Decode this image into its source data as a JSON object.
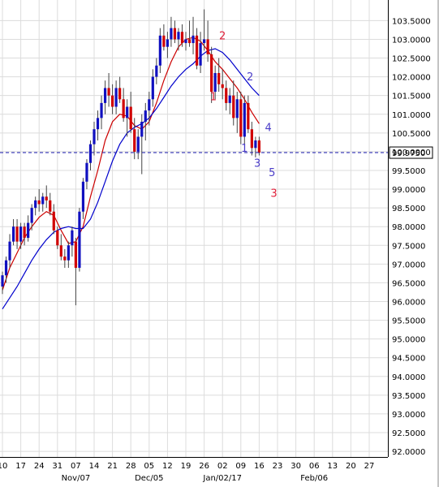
{
  "chart_data": {
    "type": "candlestick",
    "ylim": [
      91.85,
      104.05
    ],
    "y_ticks": [
      "92.0000",
      "92.5000",
      "93.0000",
      "93.5000",
      "94.0000",
      "94.5000",
      "95.0000",
      "95.5000",
      "96.0000",
      "96.5000",
      "97.0000",
      "97.5000",
      "98.0000",
      "98.5000",
      "99.0000",
      "99.5000",
      "100.0000",
      "100.5000",
      "101.0000",
      "101.5000",
      "102.0000",
      "102.5000",
      "103.0000",
      "103.5000"
    ],
    "x_ticks": [
      "10",
      "17",
      "24",
      "31",
      "07",
      "14",
      "21",
      "28",
      "05",
      "12",
      "19",
      "26",
      "02",
      "09",
      "16",
      "23",
      "30",
      "06",
      "13",
      "20",
      "27"
    ],
    "month_labels": [
      {
        "text": "Nov/07",
        "at": "07"
      },
      {
        "text": "Dec/05",
        "at": "05"
      },
      {
        "text": "Jan/02/17",
        "at": "02"
      },
      {
        "text": "Feb/06",
        "at": "06"
      }
    ],
    "current_price": {
      "value": 99.975,
      "label": "99.9750"
    },
    "candles": [
      [
        96.4,
        96.8,
        96.2,
        96.7
      ],
      [
        96.7,
        97.2,
        96.5,
        97.1
      ],
      [
        97.1,
        97.8,
        96.9,
        97.6
      ],
      [
        97.6,
        98.2,
        97.5,
        98.0
      ],
      [
        98.0,
        98.2,
        97.4,
        97.6
      ],
      [
        97.6,
        98.1,
        97.4,
        98.0
      ],
      [
        98.0,
        98.1,
        97.5,
        97.7
      ],
      [
        97.7,
        98.3,
        97.6,
        98.1
      ],
      [
        98.1,
        98.6,
        97.9,
        98.5
      ],
      [
        98.5,
        98.8,
        98.3,
        98.7
      ],
      [
        98.7,
        99.0,
        98.4,
        98.6
      ],
      [
        98.6,
        98.9,
        98.4,
        98.8
      ],
      [
        98.8,
        99.1,
        98.5,
        98.7
      ],
      [
        98.7,
        98.9,
        98.3,
        98.4
      ],
      [
        98.4,
        98.6,
        97.8,
        97.9
      ],
      [
        97.9,
        98.0,
        97.4,
        97.5
      ],
      [
        97.5,
        97.8,
        97.1,
        97.2
      ],
      [
        97.2,
        97.4,
        96.9,
        97.1
      ],
      [
        97.1,
        97.6,
        96.9,
        97.5
      ],
      [
        97.5,
        98.0,
        97.2,
        97.9
      ],
      [
        97.6,
        97.7,
        95.9,
        96.9
      ],
      [
        96.9,
        98.5,
        96.8,
        98.4
      ],
      [
        98.4,
        99.3,
        98.2,
        99.2
      ],
      [
        99.2,
        99.8,
        99.0,
        99.7
      ],
      [
        99.7,
        100.3,
        99.5,
        100.2
      ],
      [
        100.2,
        100.8,
        99.9,
        100.6
      ],
      [
        100.6,
        101.1,
        100.3,
        100.9
      ],
      [
        100.9,
        101.5,
        100.6,
        101.3
      ],
      [
        101.3,
        101.9,
        101.0,
        101.7
      ],
      [
        101.7,
        102.1,
        101.2,
        101.5
      ],
      [
        101.5,
        101.8,
        101.0,
        101.2
      ],
      [
        101.2,
        101.9,
        101.0,
        101.7
      ],
      [
        101.7,
        102.0,
        101.3,
        101.4
      ],
      [
        101.4,
        101.7,
        100.8,
        100.9
      ],
      [
        100.9,
        101.4,
        100.4,
        101.2
      ],
      [
        101.2,
        101.6,
        100.5,
        100.6
      ],
      [
        100.6,
        100.9,
        99.8,
        100.0
      ],
      [
        100.0,
        100.6,
        99.8,
        100.4
      ],
      [
        100.4,
        101.0,
        99.4,
        100.8
      ],
      [
        100.8,
        101.3,
        100.3,
        101.1
      ],
      [
        101.1,
        101.6,
        100.7,
        101.4
      ],
      [
        101.4,
        102.2,
        101.2,
        102.0
      ],
      [
        102.0,
        102.5,
        101.8,
        102.3
      ],
      [
        102.3,
        103.3,
        102.1,
        103.1
      ],
      [
        103.1,
        103.4,
        102.7,
        102.8
      ],
      [
        102.8,
        103.2,
        102.5,
        103.0
      ],
      [
        103.0,
        103.6,
        102.8,
        103.3
      ],
      [
        103.3,
        103.5,
        102.9,
        103.0
      ],
      [
        103.0,
        103.3,
        102.7,
        103.2
      ],
      [
        103.2,
        103.4,
        102.8,
        102.9
      ],
      [
        102.9,
        103.2,
        102.7,
        103.0
      ],
      [
        103.0,
        103.5,
        102.8,
        102.9
      ],
      [
        102.9,
        103.6,
        102.6,
        103.1
      ],
      [
        103.1,
        103.3,
        102.2,
        102.3
      ],
      [
        102.3,
        103.2,
        102.1,
        102.9
      ],
      [
        102.9,
        103.8,
        102.7,
        103.0
      ],
      [
        103.0,
        103.5,
        102.4,
        102.6
      ],
      [
        102.6,
        102.8,
        101.3,
        101.6
      ],
      [
        101.6,
        102.3,
        101.4,
        102.1
      ],
      [
        102.1,
        102.5,
        101.6,
        101.8
      ],
      [
        101.8,
        102.2,
        101.4,
        101.7
      ],
      [
        101.7,
        101.9,
        101.1,
        101.3
      ],
      [
        101.3,
        101.7,
        101.0,
        101.5
      ],
      [
        101.5,
        101.9,
        100.7,
        100.9
      ],
      [
        100.9,
        101.6,
        100.5,
        101.4
      ],
      [
        101.4,
        101.6,
        100.2,
        100.4
      ],
      [
        100.4,
        101.5,
        100.2,
        101.3
      ],
      [
        101.3,
        101.5,
        100.5,
        100.6
      ],
      [
        100.6,
        100.8,
        99.9,
        100.1
      ],
      [
        100.1,
        100.4,
        99.85,
        100.3
      ],
      [
        100.3,
        100.4,
        99.9,
        99.975
      ]
    ],
    "series": [
      {
        "name": "",
        "color": "#cc0000",
        "values": [
          [
            0,
            96.3
          ],
          [
            2,
            96.9
          ],
          [
            4,
            97.3
          ],
          [
            6,
            97.7
          ],
          [
            8,
            98.0
          ],
          [
            10,
            98.25
          ],
          [
            12,
            98.4
          ],
          [
            14,
            98.3
          ],
          [
            16,
            97.9
          ],
          [
            18,
            97.55
          ],
          [
            20,
            97.6
          ],
          [
            22,
            98.0
          ],
          [
            24,
            98.8
          ],
          [
            26,
            99.5
          ],
          [
            28,
            100.3
          ],
          [
            30,
            100.8
          ],
          [
            32,
            101.0
          ],
          [
            34,
            100.95
          ],
          [
            36,
            100.7
          ],
          [
            38,
            100.6
          ],
          [
            40,
            100.8
          ],
          [
            42,
            101.3
          ],
          [
            44,
            101.9
          ],
          [
            46,
            102.4
          ],
          [
            48,
            102.8
          ],
          [
            50,
            103.0
          ],
          [
            52,
            103.05
          ],
          [
            54,
            102.95
          ],
          [
            56,
            102.7
          ],
          [
            58,
            102.4
          ],
          [
            60,
            102.2
          ],
          [
            62,
            101.95
          ],
          [
            64,
            101.7
          ],
          [
            66,
            101.4
          ],
          [
            68,
            101.05
          ],
          [
            70,
            100.75
          ]
        ]
      },
      {
        "name": "",
        "color": "#0000cc",
        "values": [
          [
            0,
            95.8
          ],
          [
            2,
            96.1
          ],
          [
            4,
            96.4
          ],
          [
            6,
            96.75
          ],
          [
            8,
            97.1
          ],
          [
            10,
            97.4
          ],
          [
            12,
            97.65
          ],
          [
            14,
            97.85
          ],
          [
            16,
            97.95
          ],
          [
            18,
            98.0
          ],
          [
            20,
            97.95
          ],
          [
            22,
            97.95
          ],
          [
            24,
            98.2
          ],
          [
            26,
            98.65
          ],
          [
            28,
            99.2
          ],
          [
            30,
            99.75
          ],
          [
            32,
            100.2
          ],
          [
            34,
            100.5
          ],
          [
            36,
            100.65
          ],
          [
            38,
            100.75
          ],
          [
            40,
            100.9
          ],
          [
            42,
            101.15
          ],
          [
            44,
            101.45
          ],
          [
            46,
            101.75
          ],
          [
            48,
            102.0
          ],
          [
            50,
            102.2
          ],
          [
            52,
            102.35
          ],
          [
            54,
            102.55
          ],
          [
            56,
            102.7
          ],
          [
            58,
            102.75
          ],
          [
            60,
            102.65
          ],
          [
            62,
            102.45
          ],
          [
            64,
            102.2
          ],
          [
            66,
            101.95
          ],
          [
            68,
            101.7
          ],
          [
            70,
            101.5
          ]
        ]
      }
    ],
    "annotations": [
      {
        "text": "1",
        "color": "#e0203a",
        "x": 57.5,
        "y": 101.37
      },
      {
        "text": "2",
        "color": "#e0203a",
        "x": 60.0,
        "y": 103.0
      },
      {
        "text": "1",
        "color": "#4a3cc8",
        "x": 66.0,
        "y": 100.0
      },
      {
        "text": "2",
        "color": "#4a3cc8",
        "x": 67.5,
        "y": 101.9
      },
      {
        "text": "3",
        "color": "#4a3cc8",
        "x": 69.5,
        "y": 99.6
      },
      {
        "text": "4",
        "color": "#4a3cc8",
        "x": 72.5,
        "y": 100.55
      },
      {
        "text": "5",
        "color": "#4a3cc8",
        "x": 73.5,
        "y": 99.35
      },
      {
        "text": "3",
        "color": "#e0203a",
        "x": 74.0,
        "y": 98.8
      }
    ]
  }
}
